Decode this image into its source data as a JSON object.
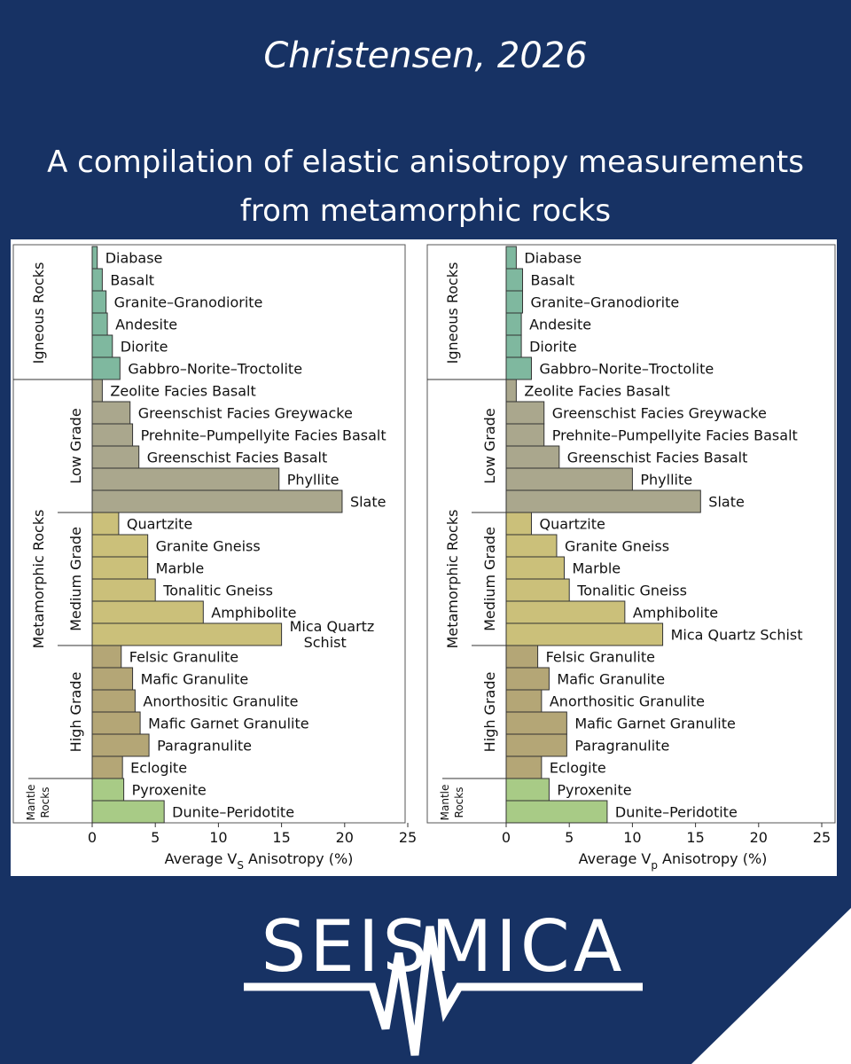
{
  "author": "Christensen, 2026",
  "subtitle_lines": [
    "A compilation of elastic anisotropy measurements",
    "from metamorphic rocks"
  ],
  "logo": {
    "text": "SEISMICA"
  },
  "chart_data": [
    {
      "type": "bar",
      "orientation": "horizontal",
      "xlabel": "Average VS Anisotropy (%)",
      "xlabel_main": "Average V",
      "xlabel_sub": "S",
      "xlabel_tail": " Anisotropy (%)",
      "xlim": [
        0,
        25
      ],
      "xticks": [
        "0",
        "5",
        "10",
        "15",
        "20",
        "25"
      ],
      "categories": [
        "Diabase",
        "Basalt",
        "Granite–Granodiorite",
        "Andesite",
        "Diorite",
        "Gabbro–Norite–Troctolite",
        "Zeolite Facies Basalt",
        "Greenschist Facies Greywacke",
        "Prehnite–Pumpellyite Facies Basalt",
        "Greenschist Facies Basalt",
        "Phyllite",
        "Slate",
        "Quartzite",
        "Granite Gneiss",
        "Marble",
        "Tonalitic Gneiss",
        "Amphibolite",
        "Mica Quartz Schist",
        "Felsic Granulite",
        "Mafic Granulite",
        "Anorthositic Granulite",
        "Mafic Garnet Granulite",
        "Paragranulite",
        "Eclogite",
        "Pyroxenite",
        "Dunite–Peridotite"
      ],
      "label_lines": [
        [
          "Diabase"
        ],
        [
          "Basalt"
        ],
        [
          "Granite–Granodiorite"
        ],
        [
          "Andesite"
        ],
        [
          "Diorite"
        ],
        [
          "Gabbro–Norite–Troctolite"
        ],
        [
          "Zeolite Facies Basalt"
        ],
        [
          "Greenschist Facies Greywacke"
        ],
        [
          "Prehnite–Pumpellyite Facies Basalt"
        ],
        [
          "Greenschist Facies Basalt"
        ],
        [
          "Phyllite"
        ],
        [
          "Slate"
        ],
        [
          "Quartzite"
        ],
        [
          "Granite Gneiss"
        ],
        [
          "Marble"
        ],
        [
          "Tonalitic Gneiss"
        ],
        [
          "Amphibolite"
        ],
        [
          "Mica Quartz",
          "Schist"
        ],
        [
          "Felsic Granulite"
        ],
        [
          "Mafic Granulite"
        ],
        [
          "Anorthositic Granulite"
        ],
        [
          "Mafic Garnet Granulite"
        ],
        [
          "Paragranulite"
        ],
        [
          "Eclogite"
        ],
        [
          "Pyroxenite"
        ],
        [
          "Dunite–Peridotite"
        ]
      ],
      "values": [
        0.4,
        0.8,
        1.1,
        1.2,
        1.6,
        2.2,
        0.8,
        3.0,
        3.2,
        3.7,
        14.8,
        19.8,
        2.1,
        4.4,
        4.4,
        5.0,
        8.8,
        15.0,
        2.3,
        3.2,
        3.4,
        3.8,
        4.5,
        2.4,
        2.5,
        5.7
      ]
    },
    {
      "type": "bar",
      "orientation": "horizontal",
      "xlabel": "Average Vp Anisotropy (%)",
      "xlabel_main": "Average V",
      "xlabel_sub": "p",
      "xlabel_tail": " Anisotropy (%)",
      "xlim": [
        0,
        25
      ],
      "xticks": [
        "0",
        "5",
        "10",
        "15",
        "20",
        "25"
      ],
      "categories": [
        "Diabase",
        "Basalt",
        "Granite–Granodiorite",
        "Andesite",
        "Diorite",
        "Gabbro–Norite–Troctolite",
        "Zeolite Facies Basalt",
        "Greenschist Facies Greywacke",
        "Prehnite–Pumpellyite Facies Basalt",
        "Greenschist Facies Basalt",
        "Phyllite",
        "Slate",
        "Quartzite",
        "Granite Gneiss",
        "Marble",
        "Tonalitic Gneiss",
        "Amphibolite",
        "Mica Quartz Schist",
        "Felsic Granulite",
        "Mafic Granulite",
        "Anorthositic Granulite",
        "Mafic Garnet Granulite",
        "Paragranulite",
        "Eclogite",
        "Pyroxenite",
        "Dunite–Peridotite"
      ],
      "label_lines": [
        [
          "Diabase"
        ],
        [
          "Basalt"
        ],
        [
          "Granite–Granodiorite"
        ],
        [
          "Andesite"
        ],
        [
          "Diorite"
        ],
        [
          "Gabbro–Norite–Troctolite"
        ],
        [
          "Zeolite Facies Basalt"
        ],
        [
          "Greenschist Facies Greywacke"
        ],
        [
          "Prehnite–Pumpellyite Facies Basalt"
        ],
        [
          "Greenschist Facies Basalt"
        ],
        [
          "Phyllite"
        ],
        [
          "Slate"
        ],
        [
          "Quartzite"
        ],
        [
          "Granite Gneiss"
        ],
        [
          "Marble"
        ],
        [
          "Tonalitic Gneiss"
        ],
        [
          "Amphibolite"
        ],
        [
          "Mica Quartz Schist"
        ],
        [
          "Felsic Granulite"
        ],
        [
          "Mafic Granulite"
        ],
        [
          "Anorthositic Granulite"
        ],
        [
          "Mafic Garnet Granulite"
        ],
        [
          "Paragranulite"
        ],
        [
          "Eclogite"
        ],
        [
          "Pyroxenite"
        ],
        [
          "Dunite–Peridotite"
        ]
      ],
      "values": [
        0.8,
        1.3,
        1.3,
        1.2,
        1.2,
        2.0,
        0.8,
        3.0,
        3.0,
        4.2,
        10.0,
        15.4,
        2.0,
        4.0,
        4.6,
        5.0,
        9.4,
        12.4,
        2.5,
        3.4,
        2.8,
        4.8,
        4.8,
        2.8,
        3.4,
        8.0
      ]
    }
  ],
  "groups": [
    {
      "label": "Igneous Rocks",
      "from": 0,
      "to": 5,
      "color": "#7fb89f"
    },
    {
      "label": "Low Grade",
      "from": 6,
      "to": 11,
      "color": "#aaa78d"
    },
    {
      "label": "Medium Grade",
      "from": 12,
      "to": 17,
      "color": "#cbc07a"
    },
    {
      "label": "High Grade",
      "from": 18,
      "to": 23,
      "color": "#b4a676"
    },
    {
      "label": "Mantle Rocks",
      "from": 24,
      "to": 25,
      "color": "#a8cb86"
    }
  ],
  "outer_group": {
    "label": "Metamorphic Rocks",
    "from": 6,
    "to": 23
  },
  "mantle_label_lines": [
    "Mantle",
    "Rocks"
  ]
}
